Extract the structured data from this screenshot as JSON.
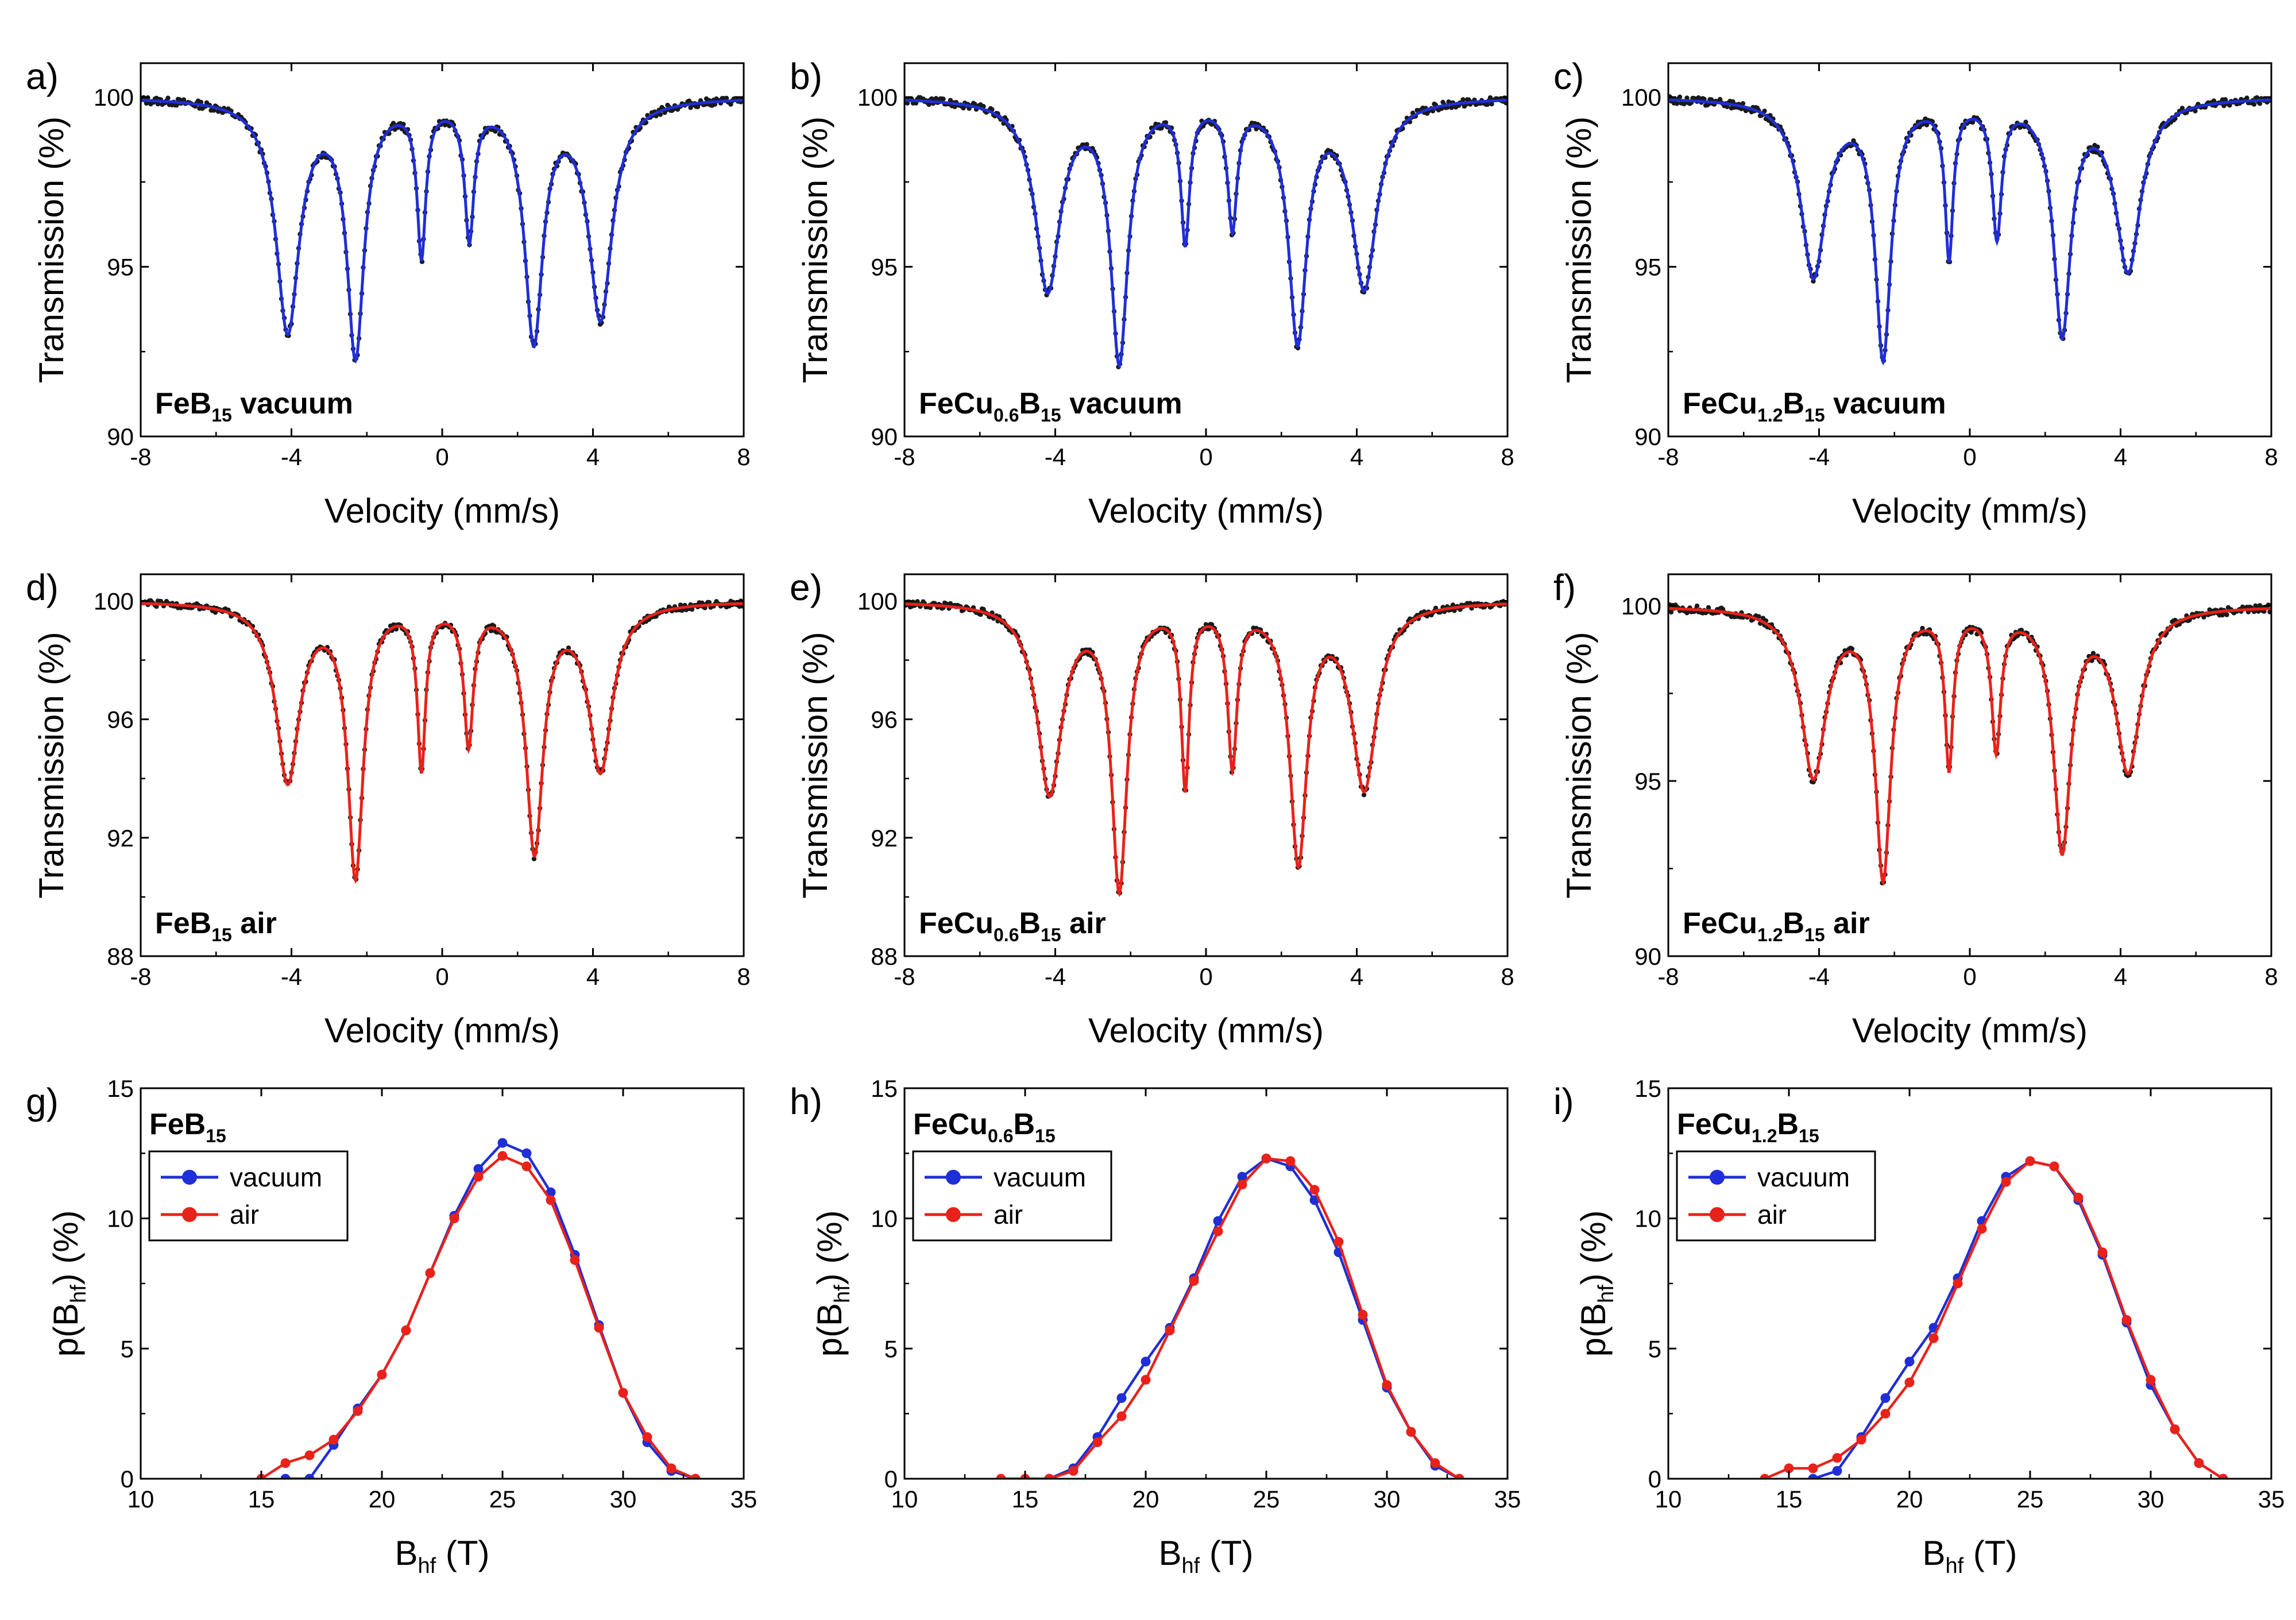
{
  "chart_data": [
    {
      "id": "a",
      "panel_label": "a)",
      "type": "line",
      "title": "FeB15 vacuum",
      "sample_label": {
        "base": "FeB",
        "sub": "15",
        "suffix": " vacuum"
      },
      "xlabel": "Velocity (mm/s)",
      "ylabel": "Transmission (%)",
      "xlim": [
        -8,
        8
      ],
      "ylim": [
        90,
        101.0
      ],
      "xticks": [
        -8,
        -4,
        0,
        4,
        8
      ],
      "xtick_labels": [
        "-8",
        "-4",
        "0",
        "4",
        "8"
      ],
      "yticks": [
        90,
        95,
        100
      ],
      "ytick_labels": [
        "90",
        "95",
        "100"
      ],
      "fit_color": "#1f2ed6",
      "lines": [
        {
          "p": -4.1,
          "d": 6.8,
          "w": 0.75
        },
        {
          "p": -2.3,
          "d": 7.4,
          "w": 0.55
        },
        {
          "p": -0.55,
          "d": 4.4,
          "w": 0.28
        },
        {
          "p": 0.72,
          "d": 3.9,
          "w": 0.3
        },
        {
          "p": 2.43,
          "d": 7.0,
          "w": 0.58
        },
        {
          "p": 4.2,
          "d": 6.4,
          "w": 0.75
        }
      ]
    },
    {
      "id": "b",
      "panel_label": "b)",
      "type": "line",
      "title": "FeCu0.6B15 vacuum",
      "sample_label": {
        "base": "FeCu",
        "sub": "0.6",
        "mid": "B",
        "sub2": "15",
        "suffix": " vacuum"
      },
      "xlabel": "Velocity (mm/s)",
      "ylabel": "Transmission (%)",
      "xlim": [
        -8,
        8
      ],
      "ylim": [
        90,
        101.0
      ],
      "xticks": [
        -8,
        -4,
        0,
        4,
        8
      ],
      "xtick_labels": [
        "-8",
        "-4",
        "0",
        "4",
        "8"
      ],
      "yticks": [
        90,
        95,
        100
      ],
      "ytick_labels": [
        "90",
        "95",
        "100"
      ],
      "fit_color": "#1f2ed6",
      "lines": [
        {
          "p": -4.2,
          "d": 5.6,
          "w": 0.8
        },
        {
          "p": -2.3,
          "d": 7.6,
          "w": 0.55
        },
        {
          "p": -0.55,
          "d": 4.0,
          "w": 0.28
        },
        {
          "p": 0.7,
          "d": 3.6,
          "w": 0.3
        },
        {
          "p": 2.43,
          "d": 7.0,
          "w": 0.58
        },
        {
          "p": 4.2,
          "d": 5.5,
          "w": 0.8
        }
      ]
    },
    {
      "id": "c",
      "panel_label": "c)",
      "type": "line",
      "title": "FeCu1.2B15 vacuum",
      "sample_label": {
        "base": "FeCu",
        "sub": "1.2",
        "mid": "B",
        "sub2": "15",
        "suffix": " vacuum"
      },
      "xlabel": "Velocity (mm/s)",
      "ylabel": "Transmission (%)",
      "xlim": [
        -8,
        8
      ],
      "ylim": [
        90,
        101.0
      ],
      "xticks": [
        -8,
        -4,
        0,
        4,
        8
      ],
      "xtick_labels": [
        "-8",
        "-4",
        "0",
        "4",
        "8"
      ],
      "yticks": [
        90,
        95,
        100
      ],
      "ytick_labels": [
        "90",
        "95",
        "100"
      ],
      "fit_color": "#1f2ed6",
      "lines": [
        {
          "p": -4.15,
          "d": 5.2,
          "w": 0.8
        },
        {
          "p": -2.3,
          "d": 7.5,
          "w": 0.5
        },
        {
          "p": -0.55,
          "d": 4.5,
          "w": 0.26
        },
        {
          "p": 0.72,
          "d": 3.9,
          "w": 0.3
        },
        {
          "p": 2.45,
          "d": 6.8,
          "w": 0.55
        },
        {
          "p": 4.2,
          "d": 5.0,
          "w": 0.8
        }
      ]
    },
    {
      "id": "d",
      "panel_label": "d)",
      "type": "line",
      "title": "FeB15 air",
      "sample_label": {
        "base": "FeB",
        "sub": "15",
        "suffix": " air"
      },
      "xlabel": "Velocity (mm/s)",
      "ylabel": "Transmission (%)",
      "xlim": [
        -8,
        8
      ],
      "ylim": [
        88,
        100.9
      ],
      "xticks": [
        -8,
        -4,
        0,
        4,
        8
      ],
      "xtick_labels": [
        "-8",
        "-4",
        "0",
        "4",
        "8"
      ],
      "yticks": [
        88,
        92,
        96,
        100
      ],
      "ytick_labels": [
        "88",
        "92",
        "96",
        "100"
      ],
      "fit_color": "#e8221a",
      "lines": [
        {
          "p": -4.1,
          "d": 6.0,
          "w": 0.75
        },
        {
          "p": -2.3,
          "d": 9.1,
          "w": 0.5
        },
        {
          "p": -0.55,
          "d": 5.4,
          "w": 0.26
        },
        {
          "p": 0.7,
          "d": 4.6,
          "w": 0.3
        },
        {
          "p": 2.45,
          "d": 8.3,
          "w": 0.55
        },
        {
          "p": 4.2,
          "d": 5.6,
          "w": 0.75
        }
      ]
    },
    {
      "id": "e",
      "panel_label": "e)",
      "type": "line",
      "title": "FeCu0.6B15 air",
      "sample_label": {
        "base": "FeCu",
        "sub": "0.6",
        "mid": "B",
        "sub2": "15",
        "suffix": " air"
      },
      "xlabel": "Velocity (mm/s)",
      "ylabel": "Transmission (%)",
      "xlim": [
        -8,
        8
      ],
      "ylim": [
        88,
        100.9
      ],
      "xticks": [
        -8,
        -4,
        0,
        4,
        8
      ],
      "xtick_labels": [
        "-8",
        "-4",
        "0",
        "4",
        "8"
      ],
      "yticks": [
        88,
        92,
        96,
        100
      ],
      "ytick_labels": [
        "88",
        "92",
        "96",
        "100"
      ],
      "fit_color": "#e8221a",
      "lines": [
        {
          "p": -4.15,
          "d": 6.4,
          "w": 0.8
        },
        {
          "p": -2.3,
          "d": 9.5,
          "w": 0.5
        },
        {
          "p": -0.55,
          "d": 6.0,
          "w": 0.26
        },
        {
          "p": 0.7,
          "d": 5.3,
          "w": 0.3
        },
        {
          "p": 2.45,
          "d": 8.6,
          "w": 0.55
        },
        {
          "p": 4.2,
          "d": 6.2,
          "w": 0.8
        }
      ]
    },
    {
      "id": "f",
      "panel_label": "f)",
      "type": "line",
      "title": "FeCu1.2B15 air",
      "sample_label": {
        "base": "FeCu",
        "sub": "1.2",
        "mid": "B",
        "sub2": "15",
        "suffix": " air"
      },
      "xlabel": "Velocity (mm/s)",
      "ylabel": "Transmission (%)",
      "xlim": [
        -8,
        8
      ],
      "ylim": [
        90,
        100.9
      ],
      "xticks": [
        -8,
        -4,
        0,
        4,
        8
      ],
      "xtick_labels": [
        "-8",
        "-4",
        "0",
        "4",
        "8"
      ],
      "yticks": [
        90,
        95,
        100
      ],
      "ytick_labels": [
        "90",
        "95",
        "100"
      ],
      "fit_color": "#e8221a",
      "lines": [
        {
          "p": -4.15,
          "d": 4.8,
          "w": 0.8
        },
        {
          "p": -2.3,
          "d": 7.6,
          "w": 0.5
        },
        {
          "p": -0.55,
          "d": 4.4,
          "w": 0.26
        },
        {
          "p": 0.7,
          "d": 3.9,
          "w": 0.3
        },
        {
          "p": 2.45,
          "d": 6.8,
          "w": 0.55
        },
        {
          "p": 4.2,
          "d": 4.6,
          "w": 0.8
        }
      ]
    },
    {
      "id": "g",
      "panel_label": "g)",
      "type": "line",
      "title": "FeB15",
      "sample_label": {
        "base": "FeB",
        "sub": "15",
        "suffix": ""
      },
      "xlabel": "Bhf (T)",
      "ylabel": "p(Bhf) (%)",
      "xlim": [
        10,
        35
      ],
      "ylim": [
        0,
        15
      ],
      "xticks": [
        10,
        15,
        20,
        25,
        30,
        35
      ],
      "xtick_labels": [
        "10",
        "15",
        "20",
        "25",
        "30",
        "35"
      ],
      "yticks": [
        0,
        5,
        10,
        15
      ],
      "ytick_labels": [
        "0",
        "5",
        "10",
        "15"
      ],
      "legend": [
        "vacuum",
        "air"
      ],
      "x": [
        15,
        16,
        17,
        18,
        19,
        20,
        21,
        22,
        23,
        24,
        25,
        26,
        27,
        28,
        29,
        30,
        31,
        32,
        33,
        34
      ],
      "series": [
        {
          "name": "vacuum",
          "color": "#1f2ed6",
          "values": [
            null,
            0.0,
            0.0,
            1.3,
            2.7,
            4.0,
            5.7,
            7.9,
            10.1,
            11.9,
            12.9,
            12.5,
            11.0,
            8.6,
            5.9,
            3.3,
            1.4,
            0.3,
            0.0,
            null
          ]
        },
        {
          "name": "air",
          "color": "#e8221a",
          "values": [
            0.0,
            0.6,
            0.9,
            1.5,
            2.6,
            4.0,
            5.7,
            7.9,
            10.0,
            11.6,
            12.4,
            12.0,
            10.7,
            8.4,
            5.8,
            3.3,
            1.6,
            0.4,
            0.0,
            null
          ]
        }
      ]
    },
    {
      "id": "h",
      "panel_label": "h)",
      "type": "line",
      "title": "FeCu0.6B15",
      "sample_label": {
        "base": "FeCu",
        "sub": "0.6",
        "mid": "B",
        "sub2": "15",
        "suffix": ""
      },
      "xlabel": "Bhf (T)",
      "ylabel": "p(Bhf) (%)",
      "xlim": [
        10,
        35
      ],
      "ylim": [
        0,
        15
      ],
      "xticks": [
        10,
        15,
        20,
        25,
        30,
        35
      ],
      "xtick_labels": [
        "10",
        "15",
        "20",
        "25",
        "30",
        "35"
      ],
      "yticks": [
        0,
        5,
        10,
        15
      ],
      "ytick_labels": [
        "0",
        "5",
        "10",
        "15"
      ],
      "legend": [
        "vacuum",
        "air"
      ],
      "x": [
        14,
        15,
        16,
        17,
        18,
        19,
        20,
        21,
        22,
        23,
        24,
        25,
        26,
        27,
        28,
        29,
        30,
        31,
        32,
        33,
        34
      ],
      "series": [
        {
          "name": "vacuum",
          "color": "#1f2ed6",
          "values": [
            null,
            null,
            0.0,
            0.4,
            1.6,
            3.1,
            4.5,
            5.8,
            7.7,
            9.9,
            11.6,
            12.3,
            12.0,
            10.7,
            8.7,
            6.1,
            3.5,
            1.8,
            0.5,
            0.0,
            null
          ]
        },
        {
          "name": "air",
          "color": "#e8221a",
          "values": [
            0.0,
            0.0,
            0.0,
            0.3,
            1.4,
            2.4,
            3.8,
            5.7,
            7.6,
            9.5,
            11.3,
            12.3,
            12.2,
            11.1,
            9.1,
            6.3,
            3.6,
            1.8,
            0.6,
            0.0,
            null
          ]
        }
      ]
    },
    {
      "id": "i",
      "panel_label": "i)",
      "type": "line",
      "title": "FeCu1.2B15",
      "sample_label": {
        "base": "FeCu",
        "sub": "1.2",
        "mid": "B",
        "sub2": "15",
        "suffix": ""
      },
      "xlabel": "Bhf (T)",
      "ylabel": "p(Bhf) (%)",
      "xlim": [
        10,
        35
      ],
      "ylim": [
        0,
        15
      ],
      "xticks": [
        10,
        15,
        20,
        25,
        30,
        35
      ],
      "xtick_labels": [
        "10",
        "15",
        "20",
        "25",
        "30",
        "35"
      ],
      "yticks": [
        0,
        5,
        10,
        15
      ],
      "ytick_labels": [
        "0",
        "5",
        "10",
        "15"
      ],
      "legend": [
        "vacuum",
        "air"
      ],
      "x": [
        14,
        15,
        16,
        17,
        18,
        19,
        20,
        21,
        22,
        23,
        24,
        25,
        26,
        27,
        28,
        29,
        30,
        31,
        32,
        33,
        34
      ],
      "series": [
        {
          "name": "vacuum",
          "color": "#1f2ed6",
          "values": [
            null,
            null,
            0.0,
            0.3,
            1.6,
            3.1,
            4.5,
            5.8,
            7.7,
            9.9,
            11.6,
            12.2,
            12.0,
            10.7,
            8.6,
            6.0,
            3.6,
            1.9,
            0.6,
            0.0,
            null
          ]
        },
        {
          "name": "air",
          "color": "#e8221a",
          "values": [
            0.0,
            0.4,
            0.4,
            0.8,
            1.5,
            2.5,
            3.7,
            5.4,
            7.5,
            9.6,
            11.4,
            12.2,
            12.0,
            10.8,
            8.7,
            6.1,
            3.8,
            1.9,
            0.6,
            0.0,
            null
          ]
        }
      ]
    }
  ]
}
